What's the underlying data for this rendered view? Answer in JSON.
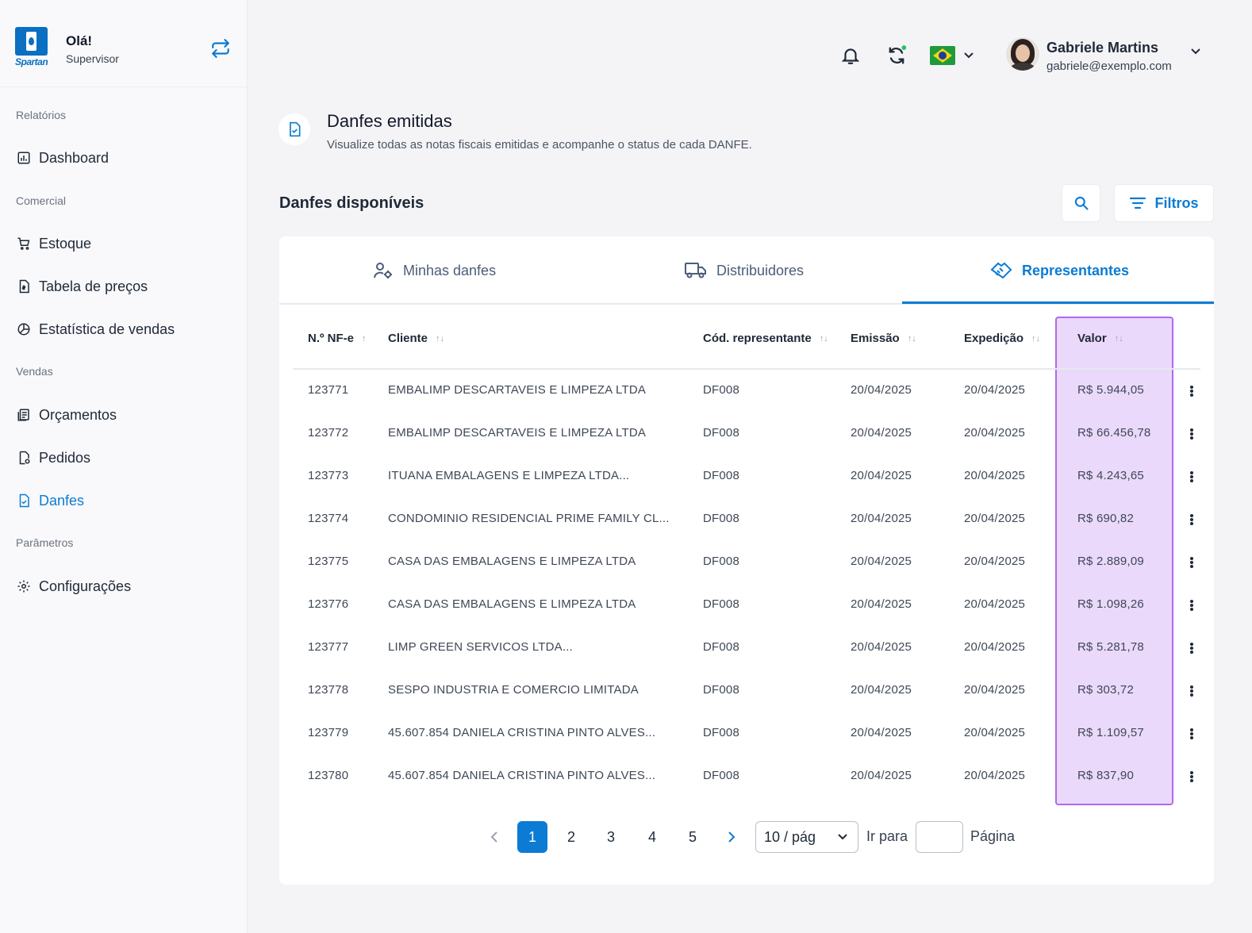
{
  "user_greeting": {
    "hello": "Olá!",
    "role": "Supervisor",
    "logo_text": "Spartan"
  },
  "sidebar": {
    "sections": [
      {
        "label": "Relatórios"
      },
      {
        "label": "Comercial"
      },
      {
        "label": "Vendas"
      },
      {
        "label": "Parâmetros"
      }
    ],
    "items": [
      {
        "label": "Dashboard",
        "icon": "dashboard-icon"
      },
      {
        "label": "Estoque",
        "icon": "cart-icon"
      },
      {
        "label": "Tabela de preços",
        "icon": "price-table-icon"
      },
      {
        "label": "Estatística de vendas",
        "icon": "pie-chart-icon"
      },
      {
        "label": "Orçamentos",
        "icon": "quotes-icon"
      },
      {
        "label": "Pedidos",
        "icon": "orders-icon"
      },
      {
        "label": "Danfes",
        "icon": "danfe-icon",
        "active": true
      },
      {
        "label": "Configurações",
        "icon": "gear-icon"
      }
    ]
  },
  "topbar": {
    "user_name": "Gabriele Martins",
    "user_email": "gabriele@exemplo.com",
    "language_flag": "brazil-flag-icon"
  },
  "page": {
    "title": "Danfes emitidas",
    "subtitle": "Visualize todas as notas fiscais emitidas e acompanhe o status de cada DANFE.",
    "section_title": "Danfes disponíveis",
    "filters_label": "Filtros"
  },
  "tabs": [
    {
      "label": "Minhas danfes"
    },
    {
      "label": "Distribuidores"
    },
    {
      "label": "Representantes",
      "active": true
    }
  ],
  "table": {
    "headers": [
      "N.º NF-e",
      "Cliente",
      "Cód. representante",
      "Emissão",
      "Expedição",
      "Valor"
    ],
    "rows": [
      [
        "123771",
        "EMBALIMP DESCARTAVEIS E LIMPEZA LTDA",
        "DF008",
        "20/04/2025",
        "20/04/2025",
        "R$ 5.944,05"
      ],
      [
        "123772",
        "EMBALIMP DESCARTAVEIS E LIMPEZA LTDA",
        "DF008",
        "20/04/2025",
        "20/04/2025",
        "R$ 66.456,78"
      ],
      [
        "123773",
        "ITUANA EMBALAGENS E LIMPEZA LTDA...",
        "DF008",
        "20/04/2025",
        "20/04/2025",
        "R$ 4.243,65"
      ],
      [
        "123774",
        "CONDOMINIO RESIDENCIAL PRIME FAMILY CL...",
        "DF008",
        "20/04/2025",
        "20/04/2025",
        "R$ 690,82"
      ],
      [
        "123775",
        "CASA DAS EMBALAGENS E LIMPEZA LTDA",
        "DF008",
        "20/04/2025",
        "20/04/2025",
        "R$ 2.889,09"
      ],
      [
        "123776",
        "CASA DAS EMBALAGENS E LIMPEZA LTDA",
        "DF008",
        "20/04/2025",
        "20/04/2025",
        "R$ 1.098,26"
      ],
      [
        "123777",
        "LIMP GREEN SERVICOS LTDA...",
        "DF008",
        "20/04/2025",
        "20/04/2025",
        "R$ 5.281,78"
      ],
      [
        "123778",
        "SESPO INDUSTRIA E COMERCIO LIMITADA",
        "DF008",
        "20/04/2025",
        "20/04/2025",
        "R$ 303,72"
      ],
      [
        "123779",
        "45.607.854 DANIELA CRISTINA PINTO ALVES...",
        "DF008",
        "20/04/2025",
        "20/04/2025",
        "R$ 1.109,57"
      ],
      [
        "123780",
        "45.607.854 DANIELA CRISTINA PINTO ALVES...",
        "DF008",
        "20/04/2025",
        "20/04/2025",
        "R$ 837,90"
      ]
    ]
  },
  "pagination": {
    "pages": [
      "1",
      "2",
      "3",
      "4",
      "5"
    ],
    "current": "1",
    "page_size": "10 / pág",
    "goto_label": "Ir para",
    "page_label": "Página"
  },
  "colors": {
    "accent": "#0b7bd3",
    "highlight_fill": "#ead9fb",
    "highlight_border": "#b069ec"
  }
}
